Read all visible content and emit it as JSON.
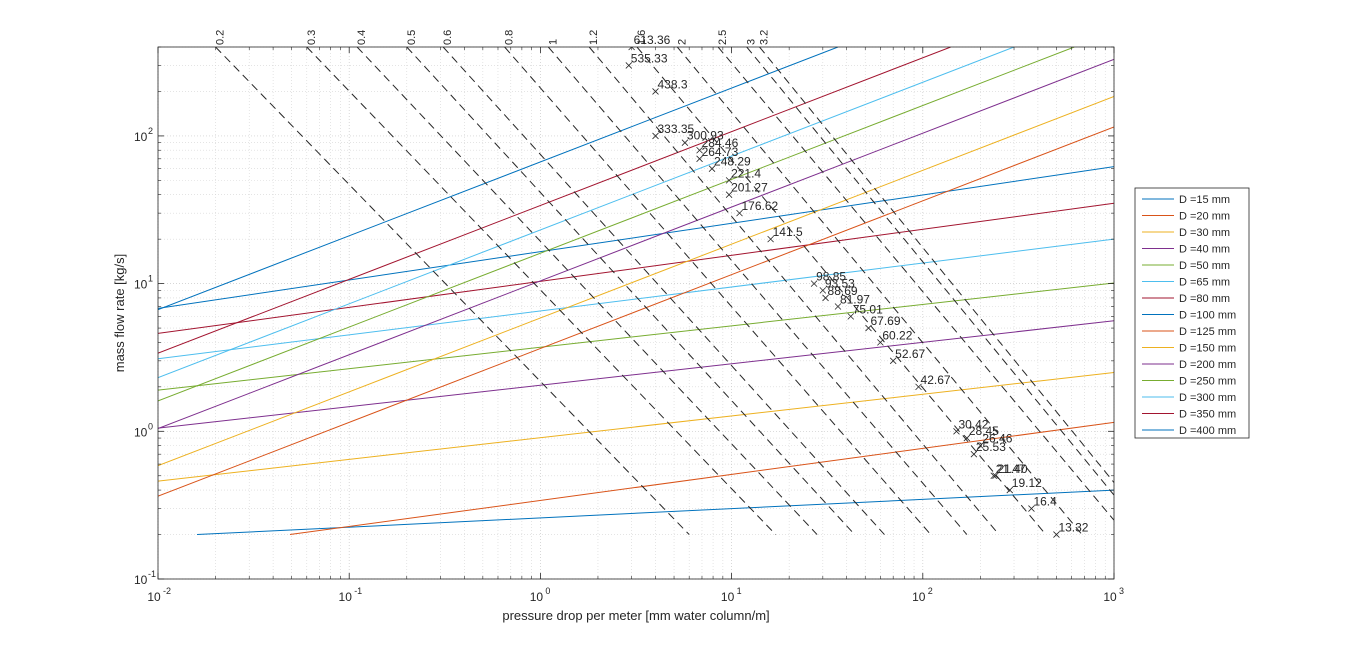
{
  "chart_data": {
    "type": "line",
    "xlabel": "pressure drop per meter [mm water column/m]",
    "ylabel": "mass flow rate [kg/s]",
    "xscale": "log",
    "yscale": "log",
    "xlim": [
      0.01,
      1000
    ],
    "ylim": [
      0.1,
      400
    ],
    "grid": true,
    "legend_position": "outside-right",
    "x_tick_labels": [
      {
        "base": "10",
        "exp": "-2"
      },
      {
        "base": "10",
        "exp": "-1"
      },
      {
        "base": "10",
        "exp": "0"
      },
      {
        "base": "10",
        "exp": "1"
      },
      {
        "base": "10",
        "exp": "2"
      },
      {
        "base": "10",
        "exp": "3"
      }
    ],
    "y_tick_labels": [
      {
        "base": "10",
        "exp": "-1"
      },
      {
        "base": "10",
        "exp": "0"
      },
      {
        "base": "10",
        "exp": "1"
      },
      {
        "base": "10",
        "exp": "2"
      }
    ],
    "diameter_series": [
      {
        "name": "D =15 mm",
        "color": "#0072BD",
        "x": [
          0.016,
          1000
        ],
        "y": [
          0.2,
          0.4
        ]
      },
      {
        "name": "D =20 mm",
        "color": "#D95319",
        "x": [
          0.049,
          1000
        ],
        "y": [
          0.2,
          1.15
        ]
      },
      {
        "name": "D =30 mm",
        "color": "#EDB120",
        "x": [
          0.01,
          1000
        ],
        "y": [
          0.46,
          2.5
        ]
      },
      {
        "name": "D =40 mm",
        "color": "#7E2F8E",
        "x": [
          0.01,
          1000
        ],
        "y": [
          1.05,
          5.6
        ]
      },
      {
        "name": "D =50 mm",
        "color": "#77AC30",
        "x": [
          0.01,
          1000
        ],
        "y": [
          1.9,
          10.1
        ]
      },
      {
        "name": "D =65 mm",
        "color": "#4DBEEE",
        "x": [
          0.01,
          1000
        ],
        "y": [
          3.1,
          20.0
        ]
      },
      {
        "name": "D =80 mm",
        "color": "#A2142F",
        "x": [
          0.01,
          1000
        ],
        "y": [
          4.6,
          35.0
        ]
      },
      {
        "name": "D =100 mm",
        "color": "#0072BD",
        "x": [
          0.01,
          1000
        ],
        "y": [
          6.8,
          62.0
        ]
      },
      {
        "name": "D =125 mm",
        "color": "#D95319",
        "x": [
          0.0,
          1000
        ],
        "y": [
          0.0,
          115.0
        ]
      },
      {
        "name": "D =150 mm",
        "color": "#EDB120",
        "x": [
          0.0,
          1000
        ],
        "y": [
          0.0,
          185.0
        ]
      },
      {
        "name": "D =200 mm",
        "color": "#7E2F8E",
        "x": [
          0.0,
          1000
        ],
        "y": [
          0.0,
          330.0
        ]
      },
      {
        "name": "D =250 mm",
        "color": "#77AC30",
        "x": [
          0.0,
          620
        ],
        "y": [
          0.0,
          400.0
        ]
      },
      {
        "name": "D =300 mm",
        "color": "#4DBEEE",
        "x": [
          0.0,
          300
        ],
        "y": [
          0.0,
          400.0
        ]
      },
      {
        "name": "D =350 mm",
        "color": "#A2142F",
        "x": [
          0.0,
          140
        ],
        "y": [
          0.0,
          400.0
        ]
      },
      {
        "name": "D =400 mm",
        "color": "#0072BD",
        "x": [
          0.0,
          36
        ],
        "y": [
          0.0,
          400.0
        ]
      }
    ],
    "velocity_lines": [
      {
        "label": "0.2",
        "x": [
          0.02,
          6
        ],
        "y": [
          400,
          0.2
        ]
      },
      {
        "label": "0.3",
        "x": [
          0.06,
          17
        ],
        "y": [
          400,
          0.2
        ]
      },
      {
        "label": "0.4",
        "x": [
          0.11,
          28
        ],
        "y": [
          400,
          0.2
        ]
      },
      {
        "label": "0.5",
        "x": [
          0.2,
          44
        ],
        "y": [
          400,
          0.2
        ]
      },
      {
        "label": "0.6",
        "x": [
          0.31,
          63
        ],
        "y": [
          400,
          0.2
        ]
      },
      {
        "label": "0.8",
        "x": [
          0.65,
          110
        ],
        "y": [
          400,
          0.2
        ]
      },
      {
        "label": "1",
        "x": [
          1.1,
          170
        ],
        "y": [
          400,
          0.2
        ]
      },
      {
        "label": "1.2",
        "x": [
          1.8,
          250
        ],
        "y": [
          400,
          0.2
        ]
      },
      {
        "label": "1.6",
        "x": [
          3.2,
          440
        ],
        "y": [
          400,
          0.2
        ]
      },
      {
        "label": "2",
        "x": [
          5.2,
          680
        ],
        "y": [
          400,
          0.2
        ]
      },
      {
        "label": "2.5",
        "x": [
          8.5,
          1000
        ],
        "y": [
          400,
          0.25
        ]
      },
      {
        "label": "3",
        "x": [
          12,
          1000
        ],
        "y": [
          400,
          0.37
        ]
      },
      {
        "label": "3.2",
        "x": [
          14,
          1000
        ],
        "y": [
          400,
          0.45
        ]
      }
    ],
    "points": [
      {
        "label": "613.36",
        "x": 3.0,
        "y": 400
      },
      {
        "label": "535.33",
        "x": 2.9,
        "y": 300
      },
      {
        "label": "438.3",
        "x": 4.0,
        "y": 200
      },
      {
        "label": "333.35",
        "x": 4.0,
        "y": 100
      },
      {
        "label": "300.93",
        "x": 5.7,
        "y": 90
      },
      {
        "label": "284.46",
        "x": 6.8,
        "y": 80
      },
      {
        "label": "264.73",
        "x": 6.8,
        "y": 70
      },
      {
        "label": "248.29",
        "x": 7.9,
        "y": 60
      },
      {
        "label": "221.4",
        "x": 9.7,
        "y": 50
      },
      {
        "label": "201.27",
        "x": 9.7,
        "y": 40
      },
      {
        "label": "176.62",
        "x": 11.0,
        "y": 30
      },
      {
        "label": "141.5",
        "x": 16.0,
        "y": 20
      },
      {
        "label": "98.85",
        "x": 27.0,
        "y": 10
      },
      {
        "label": "93.53",
        "x": 30.0,
        "y": 9
      },
      {
        "label": "88.69",
        "x": 31.0,
        "y": 8
      },
      {
        "label": "81.97",
        "x": 36.0,
        "y": 7
      },
      {
        "label": "75.01",
        "x": 42.0,
        "y": 6
      },
      {
        "label": "67.69",
        "x": 52.0,
        "y": 5
      },
      {
        "label": "60.22",
        "x": 60.0,
        "y": 4
      },
      {
        "label": "52.67",
        "x": 70.0,
        "y": 3
      },
      {
        "label": "42.67",
        "x": 95.0,
        "y": 2
      },
      {
        "label": "30.42",
        "x": 150.0,
        "y": 1.0
      },
      {
        "label": "28.45",
        "x": 170.0,
        "y": 0.9
      },
      {
        "label": "26.46",
        "x": 200.0,
        "y": 0.8
      },
      {
        "label": "25.53",
        "x": 185.0,
        "y": 0.7
      },
      {
        "label": "21.47",
        "x": 235.0,
        "y": 0.5
      },
      {
        "label": "21.40",
        "x": 240.0,
        "y": 0.5
      },
      {
        "label": "19.12",
        "x": 285.0,
        "y": 0.4
      },
      {
        "label": "16.4",
        "x": 370.0,
        "y": 0.3
      },
      {
        "label": "13.32",
        "x": 500.0,
        "y": 0.2
      }
    ]
  }
}
